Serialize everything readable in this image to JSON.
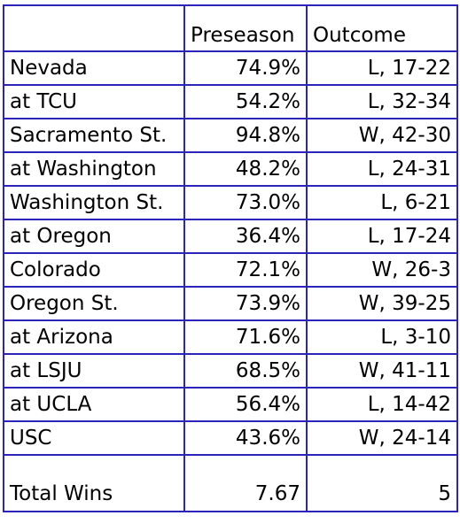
{
  "table": {
    "headers": [
      "",
      "Preseason",
      "Outcome"
    ],
    "rows": [
      {
        "opponent": "Nevada",
        "preseason": "74.9%",
        "outcome": "L, 17-22"
      },
      {
        "opponent": "at TCU",
        "preseason": "54.2%",
        "outcome": "L, 32-34"
      },
      {
        "opponent": "Sacramento St.",
        "preseason": "94.8%",
        "outcome": "W, 42-30"
      },
      {
        "opponent": "at Washington",
        "preseason": "48.2%",
        "outcome": "L, 24-31"
      },
      {
        "opponent": "Washington St.",
        "preseason": "73.0%",
        "outcome": "L, 6-21"
      },
      {
        "opponent": "at Oregon",
        "preseason": "36.4%",
        "outcome": "L, 17-24"
      },
      {
        "opponent": "Colorado",
        "preseason": "72.1%",
        "outcome": "W, 26-3"
      },
      {
        "opponent": "Oregon St.",
        "preseason": "73.9%",
        "outcome": "W, 39-25"
      },
      {
        "opponent": "at Arizona",
        "preseason": "71.6%",
        "outcome": "L, 3-10"
      },
      {
        "opponent": "at LSJU",
        "preseason": "68.5%",
        "outcome": "W, 41-11"
      },
      {
        "opponent": "at UCLA",
        "preseason": "56.4%",
        "outcome": "L, 14-42"
      },
      {
        "opponent": "USC",
        "preseason": "43.6%",
        "outcome": "W, 24-14"
      }
    ],
    "total": {
      "label": "Total Wins",
      "preseason": "7.67",
      "outcome": "5"
    }
  },
  "colors": {
    "border": "#2a24b8",
    "text": "#000000",
    "background": "#ffffff"
  }
}
